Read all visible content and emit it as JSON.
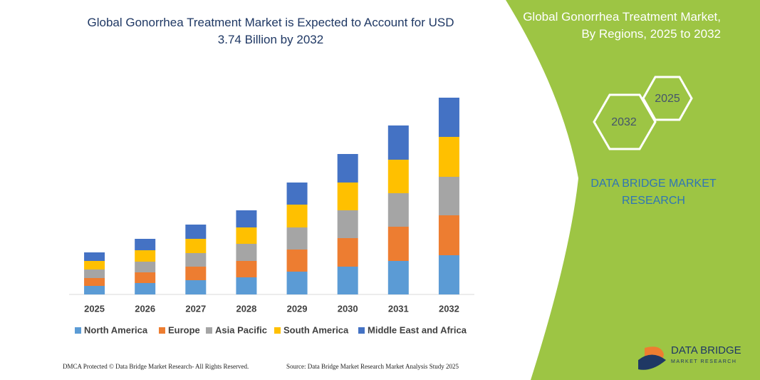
{
  "chart_data": {
    "type": "stacked-bar",
    "title": "Global Gonorrhea Treatment Market is Expected to Account for USD 3.74 Billion by 2032",
    "categories": [
      "2025",
      "2026",
      "2027",
      "2028",
      "2029",
      "2030",
      "2031",
      "2032"
    ],
    "series": [
      {
        "name": "North America",
        "color": "#5b9bd5",
        "values": [
          12,
          16,
          20,
          24,
          32,
          39,
          47,
          55
        ]
      },
      {
        "name": "Europe",
        "color": "#ed7d31",
        "values": [
          11,
          15,
          19,
          23,
          31,
          40,
          48,
          56
        ]
      },
      {
        "name": "Asia Pacific",
        "color": "#a5a5a5",
        "values": [
          12,
          15,
          19,
          24,
          31,
          39,
          47,
          54
        ]
      },
      {
        "name": "South America",
        "color": "#ffc000",
        "values": [
          12,
          16,
          20,
          23,
          32,
          39,
          47,
          56
        ]
      },
      {
        "name": "Middle East and Africa",
        "color": "#4472c4",
        "values": [
          12,
          16,
          20,
          24,
          31,
          40,
          48,
          55
        ]
      }
    ],
    "ylim": [
      0,
      280
    ],
    "grid": false,
    "legend": "bottom"
  },
  "side_panel": {
    "title": "Global Gonorrhea Treatment Market, By Regions, 2025 to 2032",
    "hexagons": [
      "2032",
      "2025"
    ],
    "brand": "DATA BRIDGE MARKET RESEARCH"
  },
  "footer": {
    "copyright": "DMCA Protected © Data Bridge Market Research- All Rights Reserved.",
    "source": "Source: Data Bridge Market Research Market Analysis Study 2025"
  },
  "logo": {
    "name": "DATA BRIDGE",
    "tagline": "MARKET RESEARCH"
  }
}
